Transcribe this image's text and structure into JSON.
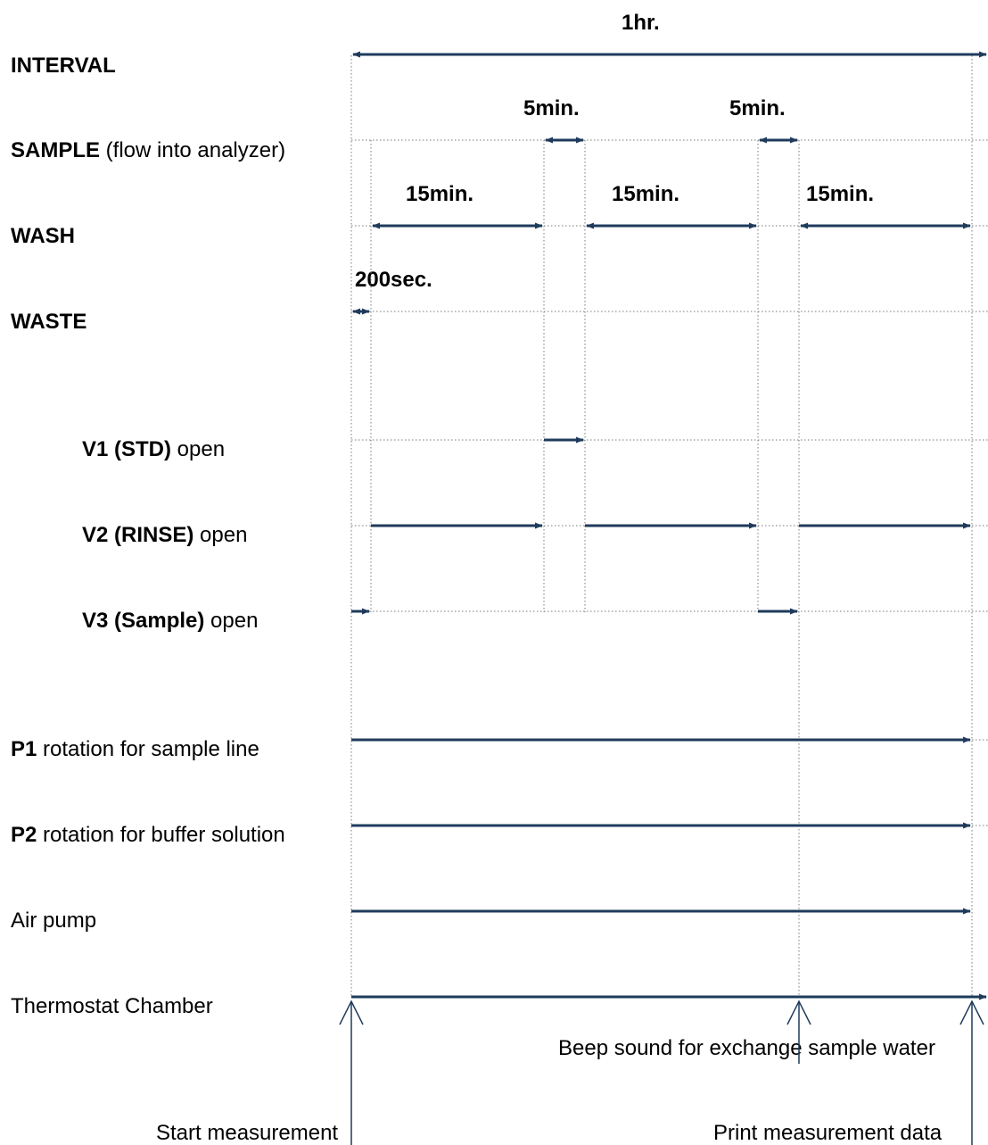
{
  "row_labels": {
    "interval": {
      "bold": "INTERVAL",
      "rest": ""
    },
    "sample": {
      "bold": "SAMPLE",
      "rest": " (flow into analyzer)"
    },
    "wash": {
      "bold": "WASH",
      "rest": ""
    },
    "waste": {
      "bold": "WASTE",
      "rest": ""
    },
    "v1": {
      "bold": "V1 (STD)",
      "rest": " open"
    },
    "v2": {
      "bold": "V2 (RINSE)",
      "rest": " open"
    },
    "v3": {
      "bold": "V3 (Sample)",
      "rest": " open"
    },
    "p1": {
      "bold": "P1",
      "rest": " rotation for sample line"
    },
    "p2": {
      "bold": "P2",
      "rest": " rotation for buffer solution"
    },
    "air": {
      "bold": "",
      "rest": "Air pump"
    },
    "thermo": {
      "bold": "",
      "rest": "Thermostat Chamber"
    }
  },
  "durations": {
    "interval": "1hr.",
    "sample_1": "5min.",
    "sample_2": "5min.",
    "wash_1": "15min.",
    "wash_2": "15min.",
    "wash_3": "15min.",
    "waste": "200sec."
  },
  "events": {
    "start": "Start measurement",
    "beep": "Beep sound for exchange sample water",
    "print": "Print measurement data"
  },
  "colors": {
    "arrow": "#1f3b5c",
    "grid": "#7a7a7a"
  }
}
